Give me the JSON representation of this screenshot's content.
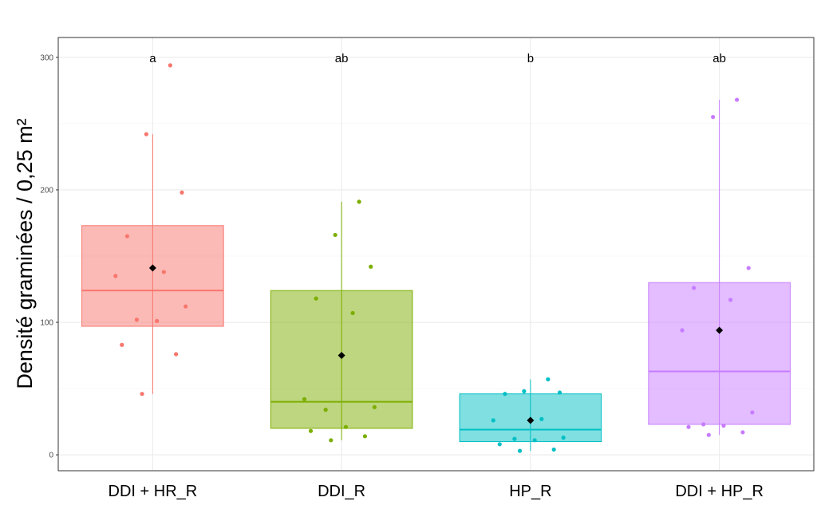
{
  "chart_data": {
    "type": "box",
    "ylabel": "Densité graminées / 0,25 m²",
    "xlabel": "",
    "ylim": [
      -12,
      315
    ],
    "yticks": [
      0,
      100,
      200,
      300
    ],
    "grid": true,
    "categories": [
      "DDI + HR_R",
      "DDI_R",
      "HP_R",
      "DDI + HP_R"
    ],
    "letters": [
      "a",
      "ab",
      "b",
      "ab"
    ],
    "groups": [
      {
        "name": "DDI + HR_R",
        "color": "#F8766D",
        "q1": 97,
        "median": 124,
        "q3": 173,
        "whisker_low": 46,
        "whisker_high": 242,
        "mean": 141,
        "points": [
          294,
          242,
          198,
          165,
          138,
          135,
          112,
          102,
          101,
          83,
          76,
          46
        ]
      },
      {
        "name": "DDI_R",
        "color": "#7CAE00",
        "q1": 20,
        "median": 40,
        "q3": 124,
        "whisker_low": 11,
        "whisker_high": 191,
        "mean": 75,
        "points": [
          191,
          166,
          142,
          118,
          107,
          42,
          36,
          34,
          21,
          18,
          14,
          11
        ]
      },
      {
        "name": "HP_R",
        "color": "#00BFC4",
        "q1": 10,
        "median": 19,
        "q3": 46,
        "whisker_low": 3,
        "whisker_high": 57,
        "mean": 26,
        "points": [
          57,
          48,
          47,
          46,
          27,
          26,
          13,
          12,
          11,
          8,
          4,
          3
        ]
      },
      {
        "name": "DDI + HP_R",
        "color": "#C77CFF",
        "q1": 23,
        "median": 63,
        "q3": 130,
        "whisker_low": 15,
        "whisker_high": 268,
        "mean": 94,
        "points": [
          268,
          255,
          141,
          126,
          117,
          94,
          32,
          23,
          22,
          21,
          17,
          15
        ]
      }
    ]
  }
}
